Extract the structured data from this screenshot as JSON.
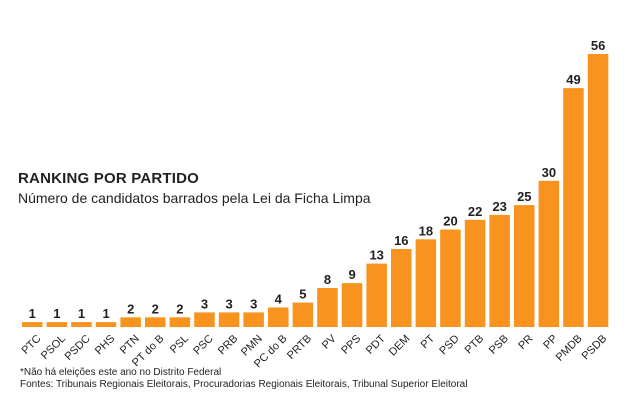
{
  "header": {
    "title": "RANKING POR PARTIDO",
    "subtitle": "Número de candidatos barrados pela Lei da Ficha Limpa"
  },
  "footer": {
    "note": "*Não há eleições este ano no Distrito Federal",
    "sources": "Fontes: Tribunais Regionais Eleitorais, Procuradorias Regionais Eleitorais, Tribunal Superior Eleitoral"
  },
  "colors": {
    "bar": "#f7931e",
    "text": "#231f20"
  },
  "chart_data": {
    "type": "bar",
    "title": "RANKING POR PARTIDO",
    "subtitle": "Número de candidatos barrados pela Lei da Ficha Limpa",
    "xlabel": "",
    "ylabel": "",
    "ylim": [
      0,
      56
    ],
    "grid": false,
    "categories": [
      "PTC",
      "PSOL",
      "PSDC",
      "PHS",
      "PTN",
      "PT do B",
      "PSL",
      "PSC",
      "PRB",
      "PMN",
      "PC do B",
      "PRTB",
      "PV",
      "PPS",
      "PDT",
      "DEM",
      "PT",
      "PSD",
      "PTB",
      "PSB",
      "PR",
      "PP",
      "PMDB",
      "PSDB"
    ],
    "values": [
      1,
      1,
      1,
      1,
      2,
      2,
      2,
      3,
      3,
      3,
      4,
      5,
      8,
      9,
      13,
      16,
      18,
      20,
      22,
      23,
      25,
      30,
      49,
      56
    ]
  }
}
